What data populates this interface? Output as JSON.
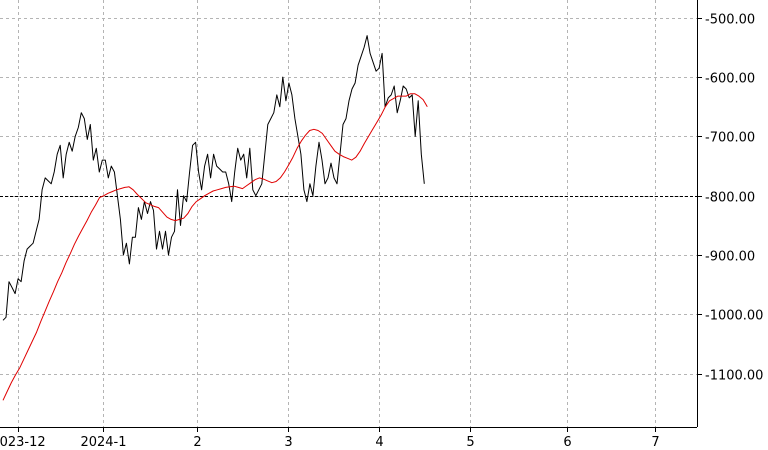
{
  "chart_data": {
    "type": "line",
    "y_ticks": [
      "-500.00",
      "-600.00",
      "-700.00",
      "-800.00",
      "-900.00",
      "-1000.00",
      "-1100.00"
    ],
    "y_tick_values": [
      -500,
      -600,
      -700,
      -800,
      -900,
      -1000,
      -1100
    ],
    "x_ticks": [
      "2023-12",
      "2024-1",
      "2",
      "3",
      "4",
      "5",
      "6",
      "7"
    ],
    "x_tick_positions": [
      6,
      34,
      65,
      95,
      125,
      155,
      187,
      216
    ],
    "xlim": [
      0,
      230
    ],
    "ylim": [
      -1190,
      -470
    ],
    "reference_line": -800,
    "grid": true,
    "colors": {
      "series": "#000000",
      "moving_average": "#e00000",
      "reference": "#000000"
    },
    "series": [
      {
        "role": "series",
        "values": [
          -1010,
          -1005,
          -945,
          -955,
          -965,
          -940,
          -945,
          -910,
          -890,
          -885,
          -880,
          -860,
          -840,
          -790,
          -770,
          -775,
          -780,
          -760,
          -730,
          -715,
          -770,
          -730,
          -710,
          -725,
          -700,
          -685,
          -660,
          -670,
          -705,
          -680,
          -740,
          -720,
          -760,
          -740,
          -740,
          -770,
          -750,
          -760,
          -800,
          -840,
          -900,
          -880,
          -915,
          -870,
          -870,
          -820,
          -840,
          -810,
          -830,
          -810,
          -825,
          -890,
          -860,
          -890,
          -860,
          -900,
          -870,
          -860,
          -790,
          -850,
          -800,
          -810,
          -760,
          -715,
          -710,
          -760,
          -790,
          -750,
          -730,
          -770,
          -730,
          -750,
          -755,
          -760,
          -760,
          -780,
          -810,
          -760,
          -720,
          -740,
          -730,
          -770,
          -720,
          -790,
          -800,
          -790,
          -780,
          -730,
          -680,
          -670,
          -660,
          -630,
          -650,
          -600,
          -640,
          -610,
          -630,
          -670,
          -700,
          -730,
          -790,
          -810,
          -780,
          -800,
          -750,
          -710,
          -740,
          -780,
          -770,
          -745,
          -770,
          -780,
          -730,
          -680,
          -670,
          -640,
          -620,
          -610,
          -580,
          -565,
          -550,
          -530,
          -560,
          -575,
          -590,
          -585,
          -560,
          -650,
          -635,
          -630,
          -615,
          -660,
          -640,
          -615,
          -620,
          -635,
          -630,
          -700,
          -640,
          -730,
          -780
        ]
      },
      {
        "role": "moving_average",
        "values": [
          -1145,
          -1130,
          -1115,
          -1102,
          -1090,
          -1075,
          -1060,
          -1045,
          -1030,
          -1012,
          -995,
          -978,
          -962,
          -945,
          -930,
          -913,
          -898,
          -882,
          -868,
          -855,
          -842,
          -828,
          -816,
          -803,
          -800,
          -796,
          -793,
          -790,
          -788,
          -786,
          -785,
          -790,
          -798,
          -805,
          -812,
          -815,
          -818,
          -820,
          -828,
          -836,
          -840,
          -842,
          -840,
          -838,
          -830,
          -818,
          -810,
          -805,
          -800,
          -796,
          -792,
          -790,
          -788,
          -786,
          -785,
          -784,
          -786,
          -788,
          -783,
          -778,
          -773,
          -770,
          -772,
          -775,
          -778,
          -776,
          -770,
          -760,
          -748,
          -735,
          -720,
          -708,
          -698,
          -690,
          -688,
          -690,
          -695,
          -705,
          -715,
          -725,
          -730,
          -734,
          -737,
          -740,
          -735,
          -725,
          -712,
          -700,
          -688,
          -676,
          -664,
          -650,
          -640,
          -636,
          -632,
          -632,
          -632,
          -628,
          -628,
          -632,
          -638,
          -650
        ]
      }
    ]
  }
}
